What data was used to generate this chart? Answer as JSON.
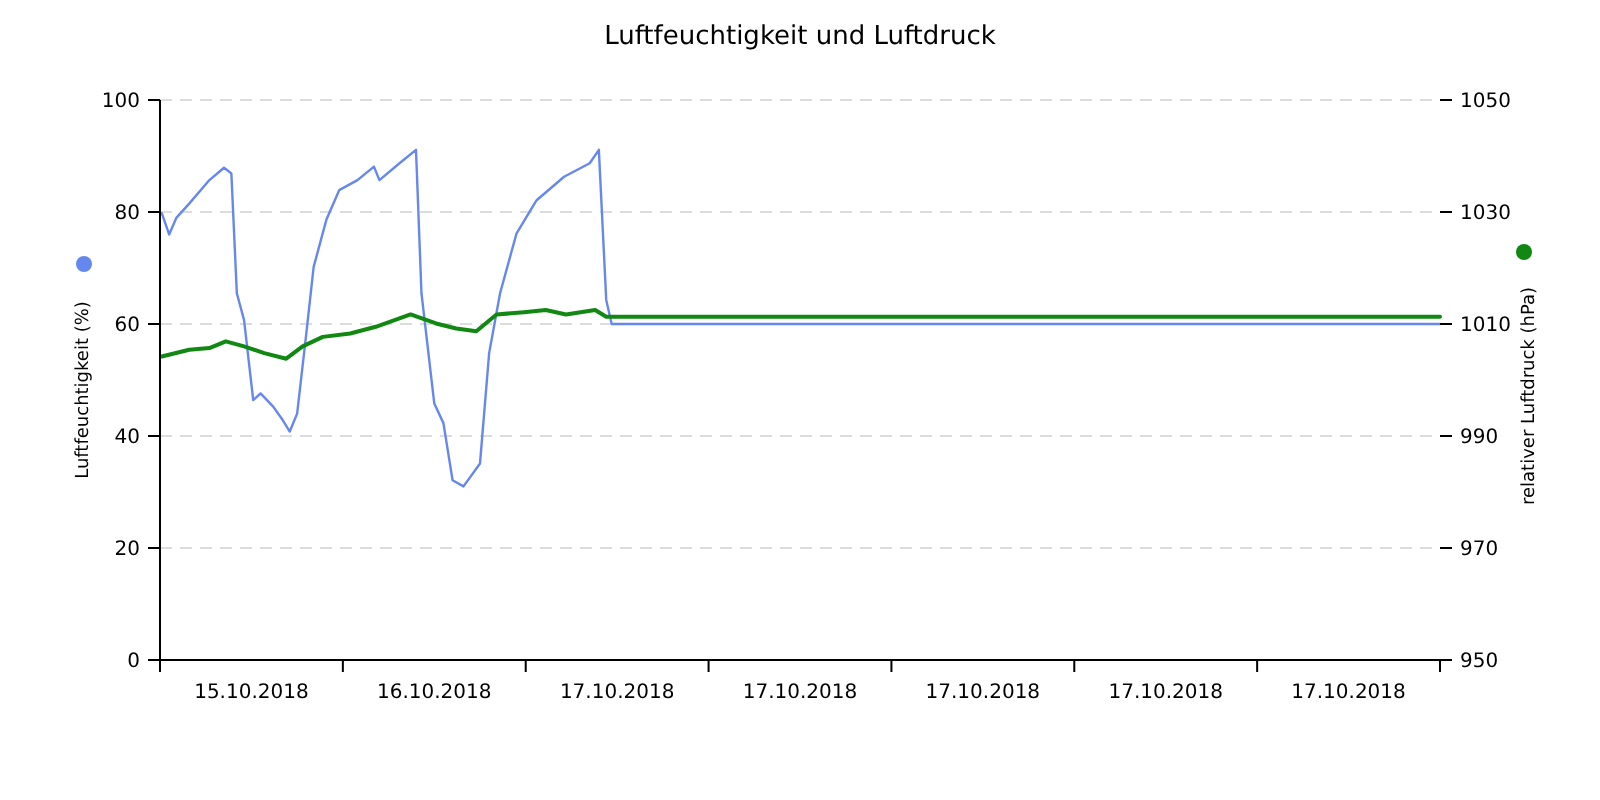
{
  "chart_data": {
    "type": "line",
    "title": "Luftfeuchtigkeit und Luftdruck",
    "ylabel": "Luftfeuchtigkeit (%)",
    "y2label": "relativer Luftdruck (hPa)",
    "xlim": [
      "2018-10-15T00:00",
      "2018-10-22T00:00"
    ],
    "xticks": [
      {
        "value": "2018-10-15T00:00",
        "label": null
      },
      {
        "value": "2018-10-15T12:00",
        "label": "15.10.2018"
      },
      {
        "value": "2018-10-16T00:00",
        "label": null
      },
      {
        "value": "2018-10-16T12:00",
        "label": "16.10.2018"
      },
      {
        "value": "2018-10-17T00:00",
        "label": null
      },
      {
        "value": "2018-10-17T12:00",
        "label": "17.10.2018"
      },
      {
        "value": "2018-10-18T00:00",
        "label": null
      },
      {
        "value": "2018-10-18T12:00",
        "label": "17.10.2018"
      },
      {
        "value": "2018-10-19T00:00",
        "label": null
      },
      {
        "value": "2018-10-19T12:00",
        "label": "17.10.2018"
      },
      {
        "value": "2018-10-20T00:00",
        "label": null
      },
      {
        "value": "2018-10-20T12:00",
        "label": "17.10.2018"
      },
      {
        "value": "2018-10-21T00:00",
        "label": null
      },
      {
        "value": "2018-10-21T12:00",
        "label": "17.10.2018"
      },
      {
        "value": "2018-10-22T00:00",
        "label": null
      }
    ],
    "ylim": [
      0,
      100
    ],
    "yticks": [
      0,
      20,
      40,
      60,
      80,
      100
    ],
    "y2lim": [
      950,
      1050
    ],
    "y2ticks": [
      950,
      970,
      990,
      1010,
      1030,
      1050
    ],
    "grid": "y",
    "marker": "none",
    "line_style": "solid",
    "series": [
      {
        "color": "#6688ee",
        "x": [
          "2018-10-15T00:14",
          "2018-10-15T01:12",
          "2018-10-15T02:10",
          "2018-10-15T03:50",
          "2018-10-15T06:29",
          "2018-10-15T08:24",
          "2018-10-15T09:22",
          "2018-10-15T10:05",
          "2018-10-15T11:02",
          "2018-10-15T12:14",
          "2018-10-15T13:12",
          "2018-10-15T14:53",
          "2018-10-15T16:05",
          "2018-10-15T17:02",
          "2018-10-15T18:00",
          "2018-10-15T19:12",
          "2018-10-15T20:10",
          "2018-10-15T21:50",
          "2018-10-15T23:31",
          "2018-10-16T01:55",
          "2018-10-16T04:05",
          "2018-10-16T04:48",
          "2018-10-16T07:26",
          "2018-10-16T09:36",
          "2018-10-16T10:19",
          "2018-10-16T12:00",
          "2018-10-16T13:12",
          "2018-10-16T14:24",
          "2018-10-16T15:50",
          "2018-10-16T18:00",
          "2018-10-16T19:12",
          "2018-10-16T20:38",
          "2018-10-16T22:48",
          "2018-10-17T01:26",
          "2018-10-17T05:02",
          "2018-10-17T08:24",
          "2018-10-17T09:36",
          "2018-10-17T10:34",
          "2018-10-17T11:17",
          "2018-10-22T00:00"
        ],
        "values": [
          79.8,
          76,
          79,
          81.5,
          85.7,
          87.9,
          86.9,
          65.5,
          60.7,
          46.4,
          47.6,
          45.2,
          42.9,
          40.8,
          44,
          58.3,
          70.2,
          78.6,
          83.9,
          85.7,
          88.1,
          85.7,
          88.7,
          91.1,
          65.5,
          45.8,
          42.3,
          32.1,
          31,
          35.1,
          54.8,
          65.5,
          76.2,
          82.1,
          86.3,
          88.7,
          91.1,
          64.3,
          60,
          60
        ]
      },
      {
        "color": "#118811",
        "axis": "y2",
        "x": [
          "2018-10-15T00:14",
          "2018-10-15T03:50",
          "2018-10-15T06:29",
          "2018-10-15T08:38",
          "2018-10-15T11:02",
          "2018-10-15T13:41",
          "2018-10-15T16:34",
          "2018-10-15T18:43",
          "2018-10-15T21:22",
          "2018-10-16T00:58",
          "2018-10-16T04:19",
          "2018-10-16T08:53",
          "2018-10-16T12:14",
          "2018-10-16T14:53",
          "2018-10-16T17:31",
          "2018-10-16T20:10",
          "2018-10-16T23:46",
          "2018-10-17T02:38",
          "2018-10-17T05:17",
          "2018-10-17T09:07",
          "2018-10-17T10:34",
          "2018-10-22T00:00"
        ],
        "values": [
          1004.2,
          1005.4,
          1005.7,
          1006.9,
          1006,
          1004.8,
          1003.8,
          1006,
          1007.7,
          1008.3,
          1009.5,
          1011.7,
          1010.1,
          1009.2,
          1008.7,
          1011.7,
          1012.1,
          1012.5,
          1011.7,
          1012.5,
          1011.3,
          1011.3
        ]
      }
    ]
  }
}
